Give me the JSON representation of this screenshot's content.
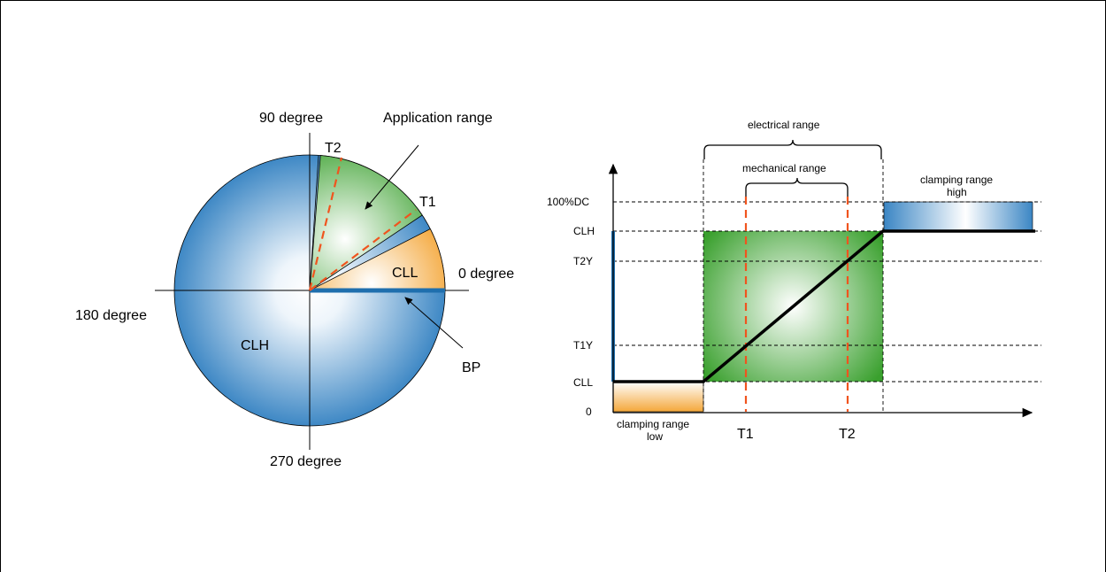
{
  "circle_diagram": {
    "angle_labels": {
      "deg90": "90 degree",
      "deg0": "0 degree",
      "deg180": "180 degree",
      "deg270": "270 degree"
    },
    "application_range_label": "Application range",
    "t2_label": "T2",
    "t1_label": "T1",
    "cll_label": "CLL",
    "clh_label": "CLH",
    "bp_label": "BP"
  },
  "range_chart": {
    "electrical_range_label": "electrical range",
    "mechanical_range_label": "mechanical range",
    "clamping_high_line1": "clamping range",
    "clamping_high_line2": "high",
    "clamping_low_line1": "clamping range",
    "clamping_low_line2": "low",
    "y_labels": {
      "dc100": "100%DC",
      "clh": "CLH",
      "t2y": "T2Y",
      "t1y": "T1Y",
      "cll": "CLL",
      "zero": "0"
    },
    "x_labels": {
      "t1": "T1",
      "t2": "T2"
    }
  },
  "colors": {
    "blue": "#3b86c4",
    "blue_edge": "#1f6fae",
    "green": "#3aa02e",
    "orange": "#f4a73a",
    "red_dash": "#f0541e",
    "line": "#000000"
  }
}
